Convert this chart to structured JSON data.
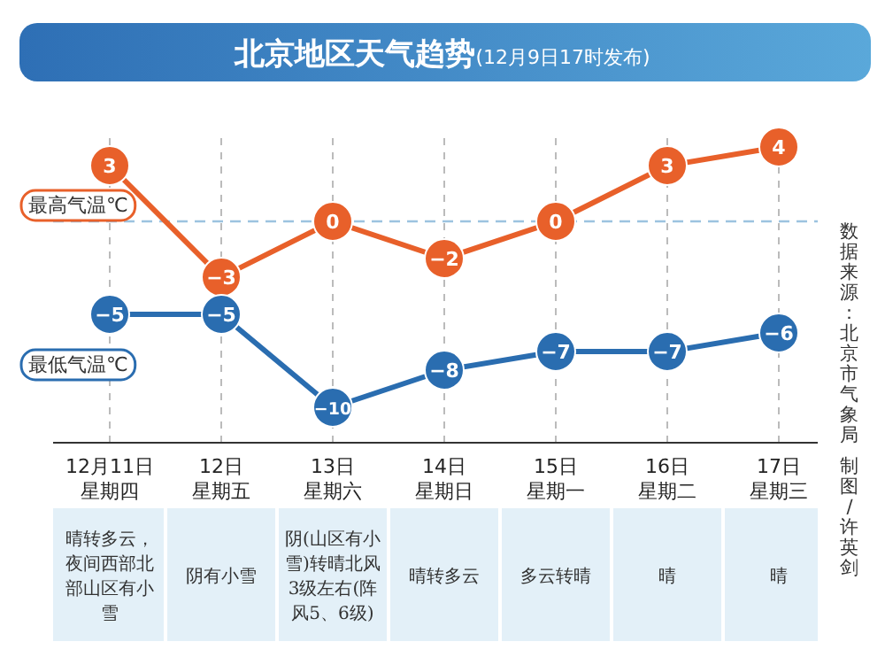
{
  "chart_data": {
    "type": "line",
    "title": "北京地区天气趋势",
    "subtitle": "(12月9日17时发布)",
    "categories": [
      "12月11日星期四",
      "12日星期五",
      "13日星期六",
      "14日星期日",
      "15日星期一",
      "16日星期二",
      "17日星期三"
    ],
    "series": [
      {
        "name": "最高气温℃",
        "color": "#e8602a",
        "values": [
          3,
          -3,
          0,
          -2,
          0,
          3,
          4
        ]
      },
      {
        "name": "最低气温℃",
        "color": "#2a6db0",
        "values": [
          -5,
          -5,
          -10,
          -8,
          -7,
          -7,
          -6
        ]
      }
    ],
    "data_labels": true,
    "grid": "x",
    "marker": "circle",
    "ref_lines": [
      {
        "axis": "y",
        "value": 0,
        "color": "#9cc3e0",
        "line_style": "dashed"
      }
    ],
    "annotations": [
      "晴转多云，夜间西部北部山区有小雪",
      "阴有小雪",
      "阴(山区有小雪)转晴北风3级左右(阵风5、6级)",
      "晴转多云",
      "多云转晴",
      "晴",
      "晴",
      "数据来源：北京市气象局",
      "制图/许英剑"
    ]
  }
}
